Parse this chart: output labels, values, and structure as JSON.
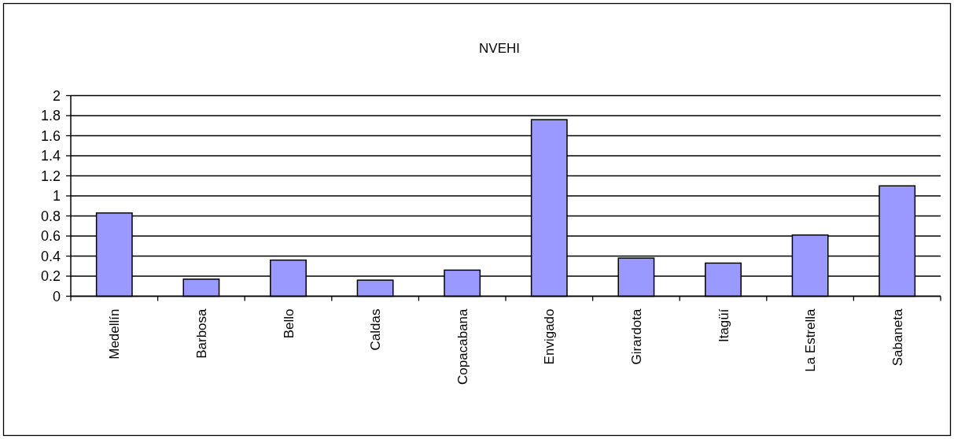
{
  "chart_data": {
    "type": "bar",
    "title": "NVEHI",
    "categories": [
      "Medellín",
      "Barbosa",
      "Bello",
      "Caldas",
      "Copacabana",
      "Envigado",
      "Girardota",
      "Itagüí",
      "La Estrella",
      "Sabaneta"
    ],
    "values": [
      0.83,
      0.17,
      0.36,
      0.16,
      0.26,
      1.76,
      0.38,
      0.33,
      0.61,
      1.1
    ],
    "color": "#9999ff",
    "ylim": [
      0,
      2
    ],
    "yticks": [
      0,
      0.2,
      0.4,
      0.6,
      0.8,
      1,
      1.2,
      1.4,
      1.6,
      1.8,
      2
    ],
    "grid": "y"
  }
}
